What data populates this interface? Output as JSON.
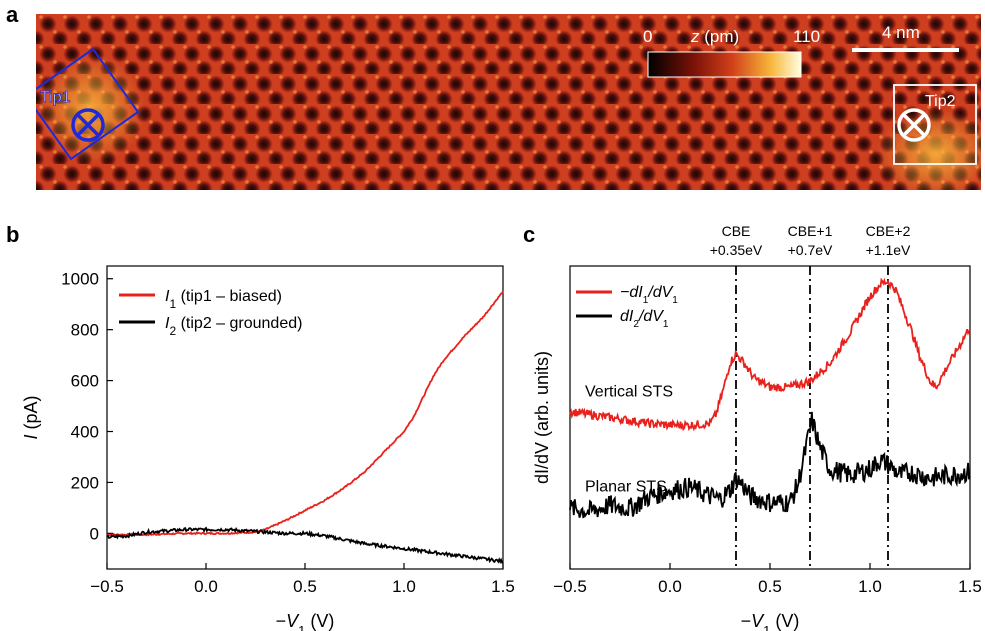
{
  "panel_labels": {
    "a": "a",
    "b": "b",
    "c": "c"
  },
  "panel_a": {
    "colorbar": {
      "min": "0",
      "max": "110",
      "label_italic": "z",
      "label_unit": " (pm)"
    },
    "scalebar": "4 nm",
    "tip1_label": "Tip1",
    "tip2_label": "Tip2",
    "colors": {
      "lattice_base": "#c8371c",
      "pit": "#2a0a06",
      "tip1_box": "#1f2ad6",
      "tip2_box": "#ffffff"
    }
  },
  "chart_data": [
    {
      "type": "line",
      "panel": "b",
      "xlabel_prefix": "−",
      "xlabel_var": "V",
      "xlabel_sub": "1",
      "xlabel_unit": " (V)",
      "ylabel_var": "I",
      "ylabel_unit": " (pA)",
      "xlim": [
        -0.5,
        1.5
      ],
      "ylim": [
        -140,
        1050
      ],
      "xticks": [
        -0.5,
        0.0,
        0.5,
        1.0,
        1.5
      ],
      "xtick_labels": [
        "−0.5",
        "0.0",
        "0.5",
        "1.0",
        "1.5"
      ],
      "yticks": [
        0,
        200,
        400,
        600,
        800,
        1000
      ],
      "ytick_labels": [
        "0",
        "200",
        "400",
        "600",
        "800",
        "1000"
      ],
      "legend_position": "top-left",
      "series": [
        {
          "name_var": "I",
          "name_sub": "1",
          "name_rest": " (tip1 – biased)",
          "color": "#e8211c",
          "x": [
            -0.5,
            -0.3,
            -0.1,
            0.1,
            0.25,
            0.3,
            0.4,
            0.5,
            0.6,
            0.7,
            0.8,
            0.9,
            1.0,
            1.05,
            1.1,
            1.15,
            1.2,
            1.3,
            1.4,
            1.5
          ],
          "y": [
            -5,
            -5,
            0,
            0,
            5,
            15,
            50,
            90,
            130,
            180,
            240,
            320,
            400,
            460,
            540,
            620,
            680,
            770,
            850,
            950
          ]
        },
        {
          "name_var": "I",
          "name_sub": "2",
          "name_rest": " (tip2 – grounded)",
          "color": "#000000",
          "x": [
            -0.5,
            -0.4,
            -0.3,
            -0.2,
            -0.1,
            0.0,
            0.1,
            0.2,
            0.3,
            0.4,
            0.5,
            0.6,
            0.7,
            0.8,
            0.9,
            1.0,
            1.1,
            1.2,
            1.3,
            1.4,
            1.5
          ],
          "y": [
            -15,
            -10,
            5,
            10,
            15,
            15,
            15,
            10,
            5,
            0,
            0,
            -10,
            -25,
            -40,
            -50,
            -60,
            -70,
            -80,
            -90,
            -100,
            -110
          ]
        }
      ]
    },
    {
      "type": "line",
      "panel": "c",
      "xlabel_prefix": "−",
      "xlabel_var": "V",
      "xlabel_sub": "1",
      "xlabel_unit": " (V)",
      "ylabel": "dI/dV (arb. units)",
      "xlim": [
        -0.5,
        1.5
      ],
      "ylim": [
        0,
        100
      ],
      "xticks": [
        -0.5,
        0.0,
        0.5,
        1.0,
        1.5
      ],
      "xtick_labels": [
        "−0.5",
        "0.0",
        "0.5",
        "1.0",
        "1.5"
      ],
      "legend_position": "top-left",
      "annotations": [
        {
          "line1": "CBE",
          "line2": "+0.35eV",
          "x": 0.33
        },
        {
          "line1": "CBE+1",
          "line2": "+0.7eV",
          "x": 0.7
        },
        {
          "line1": "CBE+2",
          "line2": "+1.1eV",
          "x": 1.09
        }
      ],
      "text_labels": {
        "vertical": "Vertical STS",
        "planar": "Planar STS"
      },
      "series": [
        {
          "name_prefix": "−",
          "name_var": "dI",
          "name_sub": "1",
          "name_mid": "/dV",
          "name_sub2": "1",
          "color": "#e8211c",
          "x": [
            -0.5,
            -0.4,
            -0.3,
            -0.2,
            -0.1,
            0.0,
            0.1,
            0.2,
            0.23,
            0.27,
            0.3,
            0.33,
            0.37,
            0.42,
            0.5,
            0.6,
            0.7,
            0.8,
            0.9,
            1.0,
            1.05,
            1.09,
            1.13,
            1.2,
            1.25,
            1.3,
            1.33,
            1.38,
            1.45,
            1.5
          ],
          "y": [
            52,
            51,
            50,
            49,
            48,
            47.5,
            47.5,
            48,
            51,
            60,
            68,
            71,
            68,
            63,
            60,
            60,
            62,
            68,
            78,
            90,
            94,
            95,
            92,
            80,
            70,
            62,
            60,
            66,
            74,
            80
          ]
        },
        {
          "name_var": "dI",
          "name_sub": "2",
          "name_mid": "/dV",
          "name_sub2": "1",
          "color": "#000000",
          "x": [
            -0.5,
            -0.4,
            -0.3,
            -0.2,
            -0.1,
            0.0,
            0.1,
            0.2,
            0.25,
            0.3,
            0.33,
            0.36,
            0.4,
            0.5,
            0.6,
            0.64,
            0.68,
            0.71,
            0.75,
            0.8,
            0.9,
            1.0,
            1.05,
            1.1,
            1.15,
            1.2,
            1.3,
            1.4,
            1.5
          ],
          "y": [
            20,
            19,
            21,
            20,
            24,
            26,
            27,
            24,
            23,
            26,
            30,
            28,
            24,
            22,
            22,
            28,
            40,
            49,
            40,
            33,
            31,
            33,
            36,
            34,
            31,
            32,
            30,
            31,
            32
          ]
        }
      ]
    }
  ]
}
